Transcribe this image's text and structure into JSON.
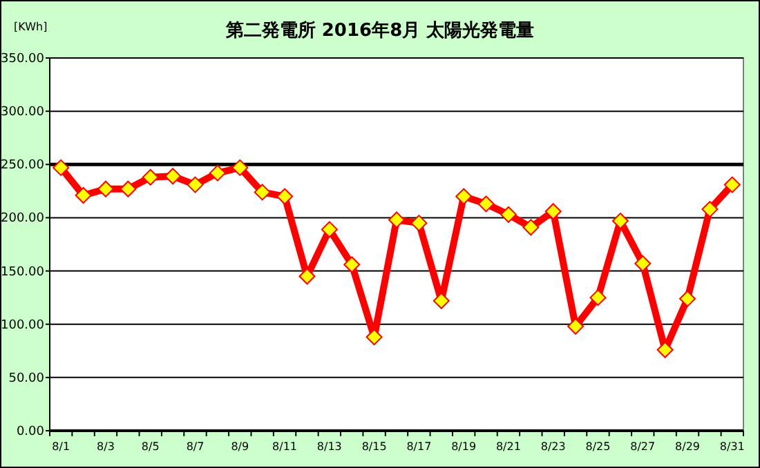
{
  "chart_data": {
    "type": "line",
    "title": "第二発電所  2016年8月 太陽光発電量",
    "ylabel": "[KWh]",
    "categories": [
      "8/1",
      null,
      "8/3",
      null,
      "8/5",
      null,
      "8/7",
      null,
      "8/9",
      null,
      "8/11",
      null,
      "8/13",
      null,
      "8/15",
      null,
      "8/17",
      null,
      "8/19",
      null,
      "8/21",
      null,
      "8/23",
      null,
      "8/25",
      null,
      "8/27",
      null,
      "8/29",
      null,
      "8/31"
    ],
    "series": [
      {
        "color": "#ff0000",
        "values": [
          247,
          221,
          227,
          227,
          238,
          239,
          231,
          242,
          247,
          224,
          220,
          145,
          189,
          156,
          88,
          198,
          195,
          122,
          220,
          213,
          203,
          191,
          206,
          98,
          125,
          197,
          157,
          76,
          124,
          208,
          231
        ]
      }
    ],
    "ylim": [
      0,
      350
    ],
    "yticks": [
      {
        "value": 0,
        "label": "0.00"
      },
      {
        "value": 50,
        "label": "50.00"
      },
      {
        "value": 100,
        "label": "100.00"
      },
      {
        "value": 150,
        "label": "150.00"
      },
      {
        "value": 200,
        "label": "200.00"
      },
      {
        "value": 250,
        "label": "250.00"
      },
      {
        "value": 300,
        "label": "300.00"
      },
      {
        "value": 350,
        "label": "350.00"
      }
    ],
    "ref_lines": [
      {
        "axis": "y",
        "value": 250,
        "label": null,
        "color": "#000000"
      }
    ],
    "grid": "y",
    "marker": "diamond",
    "line_style": "solid"
  }
}
